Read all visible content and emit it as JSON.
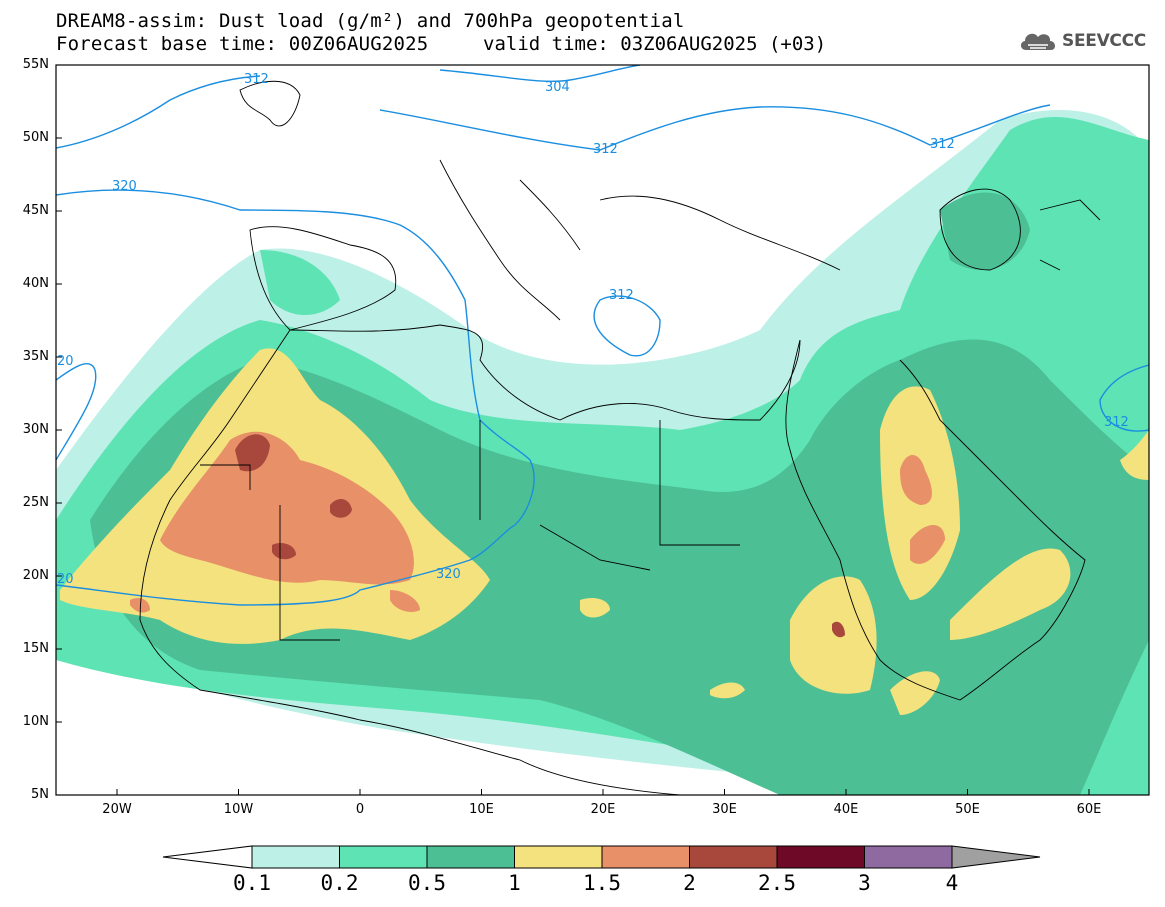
{
  "title": {
    "line1": "DREAM8-assim: Dust load (g/m²) and 700hPa geopotential",
    "line2": "Forecast base time: 00Z06AUG2025",
    "valid": "valid time: 03Z06AUG2025 (+03)"
  },
  "logo": {
    "text": "SEEVCCC",
    "icon": "cloud-icon"
  },
  "lat_labels": [
    "55N",
    "50N",
    "45N",
    "40N",
    "35N",
    "30N",
    "25N",
    "20N",
    "15N",
    "10N",
    "5N"
  ],
  "lon_labels": [
    "20W",
    "10W",
    "0",
    "10E",
    "20E",
    "30E",
    "40E",
    "50E",
    "60E"
  ],
  "contour_labels": [
    "312",
    "304",
    "312",
    "312",
    "320",
    "312",
    "20",
    "312",
    "20",
    "320"
  ],
  "colorbar": {
    "levels": [
      "0.1",
      "0.2",
      "0.5",
      "1",
      "1.5",
      "2",
      "2.5",
      "3",
      "4"
    ],
    "colors": [
      "#bdf0e6",
      "#5ee3b4",
      "#4dbf94",
      "#f4e27e",
      "#e89068",
      "#a8483c",
      "#6e0a28",
      "#8e6aa0"
    ],
    "end_low": "#ffffff",
    "end_high": "#a0a0a0"
  },
  "fill_colors": {
    "c01": "#bdf0e6",
    "c02": "#5ee3b4",
    "c05": "#4dbf94",
    "c10": "#f4e27e",
    "c15": "#e89068",
    "c20": "#a8483c",
    "contour": "#1a8ee0"
  }
}
